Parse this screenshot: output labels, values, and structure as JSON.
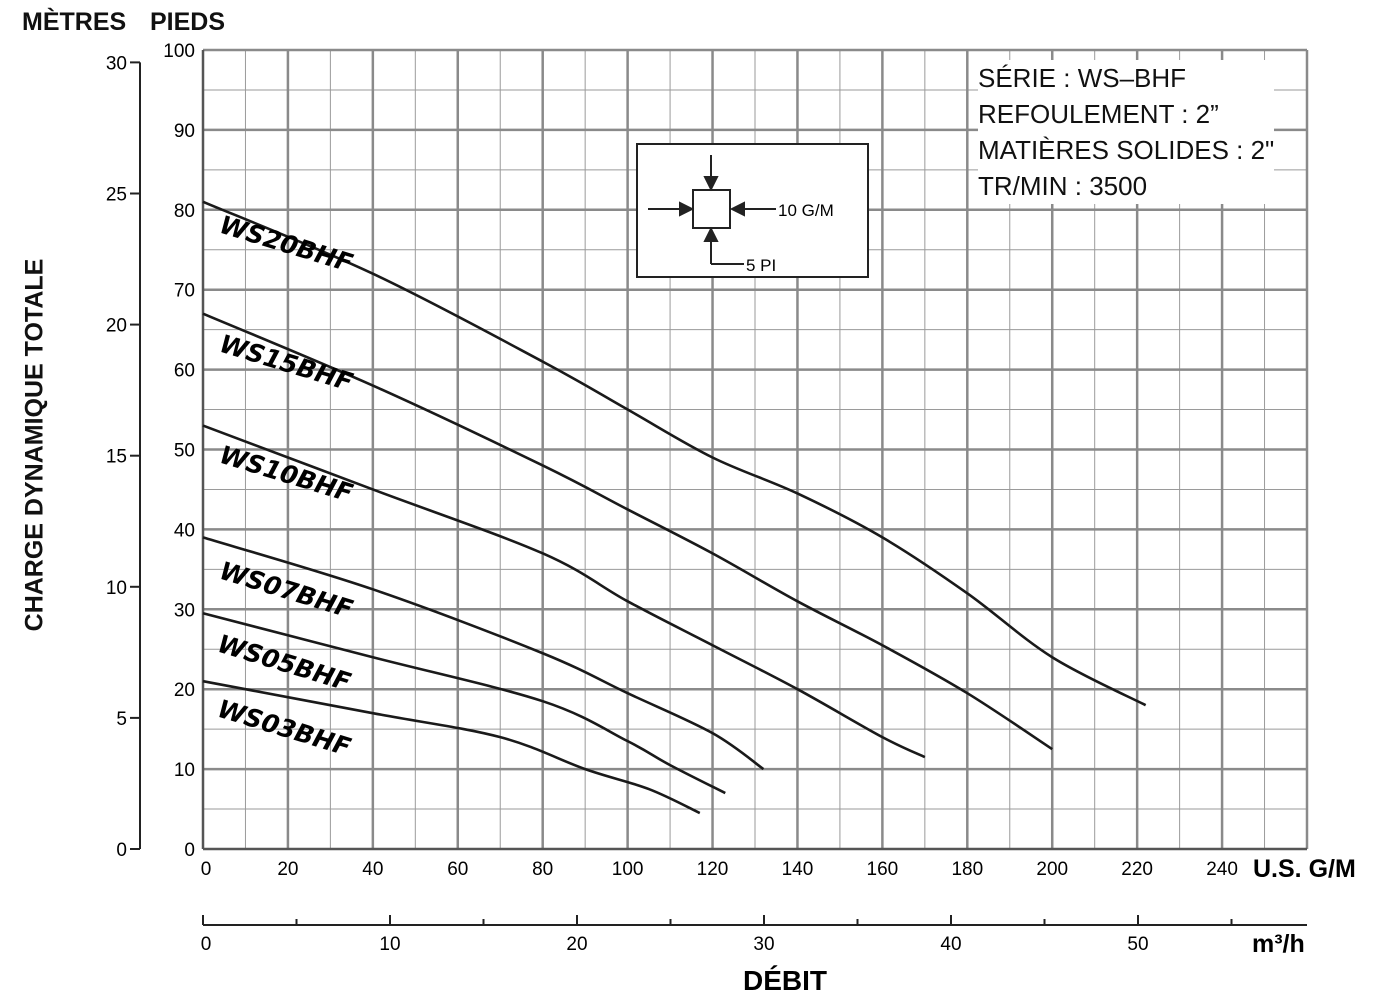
{
  "header": {
    "left_unit": "MÈTRES",
    "right_unit": "PIEDS"
  },
  "info_box": {
    "lines": [
      "SÉRIE : WS–BHF",
      "REFOULEMENT : 2”",
      "MATIÈRES SOLIDES : 2\"",
      "TR/MIN : 3500"
    ]
  },
  "inset": {
    "flow_label": "10 G/M",
    "head_label": "5 PI"
  },
  "chart_data": {
    "type": "line",
    "title": "",
    "xlabel": "DÉBIT",
    "ylabel": "CHARGE DYNAMIQUE TOTALE",
    "x_unit": "U.S. G/M",
    "x2_unit": "m³/h",
    "y_unit": "PIEDS",
    "y2_unit": "MÈTRES",
    "xlim": [
      0,
      260
    ],
    "ylim": [
      0,
      100
    ],
    "x2lim": [
      0,
      59
    ],
    "y2lim": [
      0,
      30
    ],
    "x_ticks": [
      "0",
      "20",
      "40",
      "60",
      "80",
      "100",
      "120",
      "140",
      "160",
      "180",
      "200",
      "220",
      "240"
    ],
    "y_ticks": [
      "0",
      "10",
      "20",
      "30",
      "40",
      "50",
      "60",
      "70",
      "80",
      "90",
      "100"
    ],
    "x2_ticks": [
      "0",
      "10",
      "20",
      "30",
      "40",
      "50"
    ],
    "y2_ticks": [
      "0",
      "5",
      "10",
      "15",
      "20",
      "25",
      "30"
    ],
    "grid": true,
    "series": [
      {
        "name": "WS20BHF",
        "x": [
          0,
          40,
          80,
          100,
          120,
          140,
          160,
          180,
          200,
          222
        ],
        "y": [
          81,
          72,
          61,
          55,
          49,
          44.5,
          39,
          32,
          24,
          18
        ]
      },
      {
        "name": "WS15BHF",
        "x": [
          0,
          40,
          80,
          100,
          120,
          140,
          160,
          180,
          200
        ],
        "y": [
          67,
          58,
          48,
          42.5,
          37,
          31,
          25.5,
          19.5,
          12.5
        ]
      },
      {
        "name": "WS10BHF",
        "x": [
          0,
          40,
          80,
          100,
          120,
          140,
          160,
          170
        ],
        "y": [
          53,
          45,
          37,
          31,
          25.5,
          20,
          14,
          11.5
        ]
      },
      {
        "name": "WS07BHF",
        "x": [
          0,
          40,
          80,
          100,
          120,
          132
        ],
        "y": [
          39,
          32.5,
          24.5,
          19.5,
          14.5,
          10
        ]
      },
      {
        "name": "WS05BHF",
        "x": [
          0,
          40,
          80,
          100,
          110,
          123
        ],
        "y": [
          29.5,
          24,
          18.5,
          13.5,
          10.5,
          7
        ]
      },
      {
        "name": "WS03BHF",
        "x": [
          0,
          40,
          70,
          90,
          105,
          117
        ],
        "y": [
          21,
          17,
          14,
          10,
          7.5,
          4.5
        ]
      }
    ]
  }
}
